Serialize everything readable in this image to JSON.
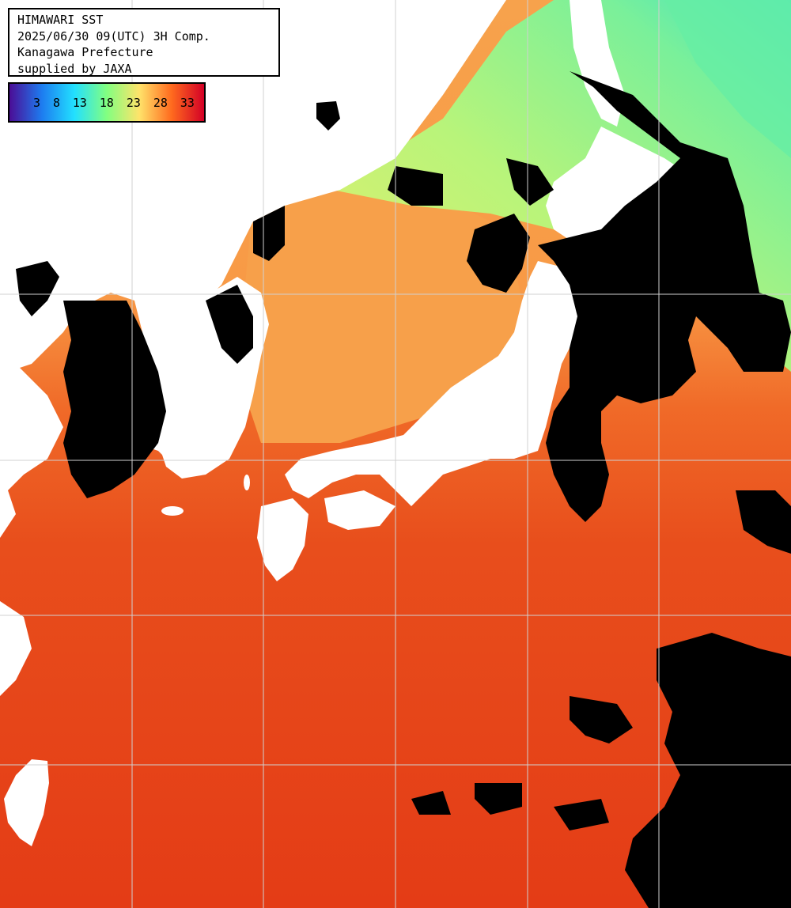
{
  "header": {
    "title": "HIMAWARI SST",
    "datetime": "2025/06/30 09(UTC) 3H Comp.",
    "organization": "Kanagawa Prefecture",
    "credit": "supplied by JAXA"
  },
  "colorbar": {
    "labels": [
      "3",
      "8",
      "13",
      "18",
      "23",
      "28",
      "33"
    ],
    "colors": [
      "#4b0d96",
      "#1d7cf0",
      "#22e0ff",
      "#82ff80",
      "#ffe36a",
      "#ff6a1e",
      "#d30026"
    ]
  },
  "map": {
    "sea_color": "#e84a1a",
    "land_color": "#ffffff",
    "cloud_color": "#000000",
    "grid_color": "#d0d0d0"
  }
}
